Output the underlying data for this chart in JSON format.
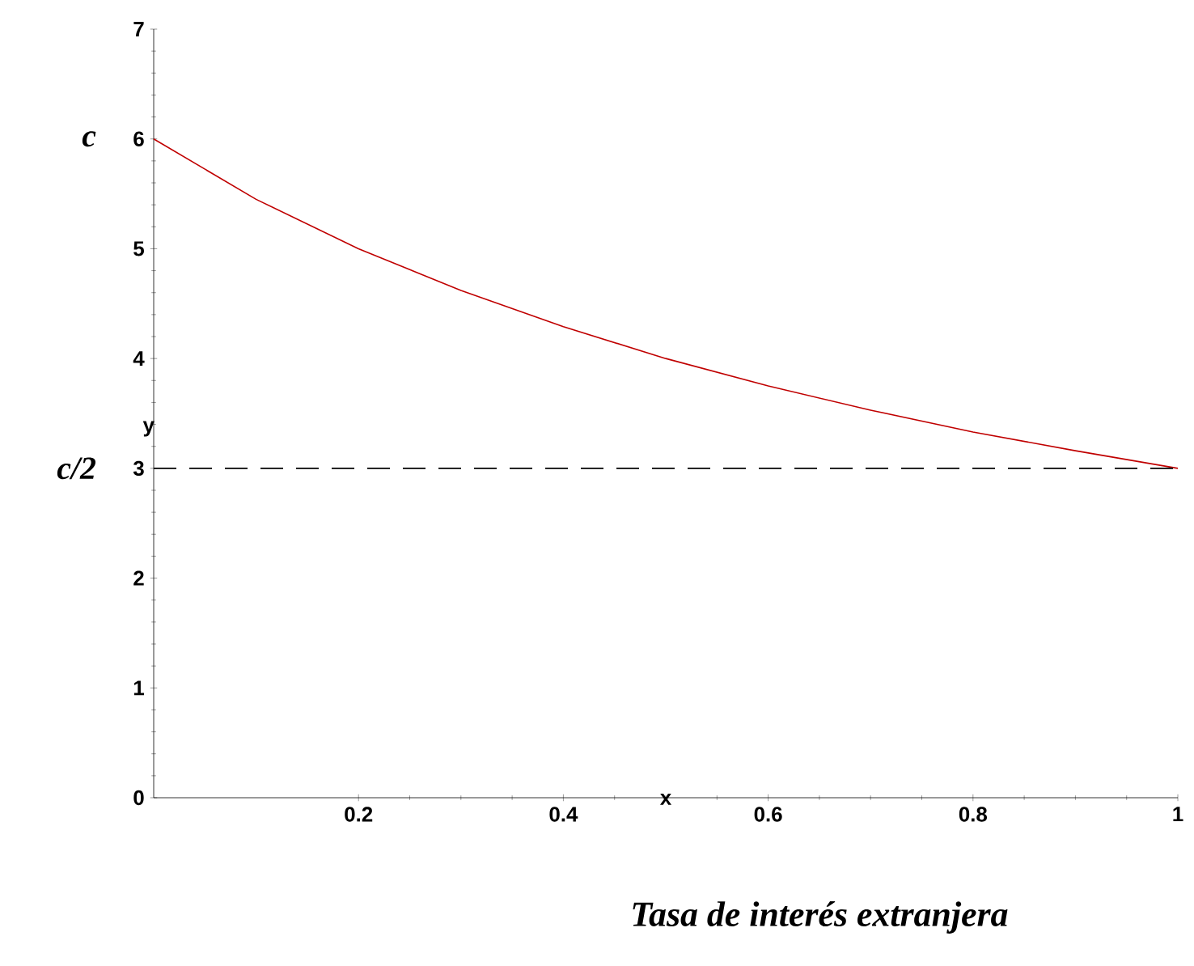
{
  "chart_data": {
    "type": "line",
    "xlabel": "x",
    "ylabel": "y",
    "x": [
      0,
      0.1,
      0.2,
      0.3,
      0.4,
      0.5,
      0.6,
      0.7,
      0.8,
      0.9,
      1
    ],
    "series": [
      {
        "color": "#c00000",
        "values": [
          6,
          5.45,
          5,
          4.62,
          4.29,
          4,
          3.75,
          3.53,
          3.33,
          3.16,
          3
        ]
      }
    ],
    "xlim": [
      0,
      1
    ],
    "ylim": [
      0,
      7
    ],
    "xticks": [
      0.2,
      0.4,
      0.6,
      0.8,
      1
    ],
    "yticks": [
      0,
      1,
      2,
      3,
      4,
      5,
      6,
      7
    ],
    "ref_lines": [
      {
        "axis": "y",
        "value": 3,
        "label": "c/2",
        "color": "#000000",
        "line_style": "dashed"
      }
    ],
    "annotations": [
      {
        "text": "c",
        "x": 0,
        "y": 6
      },
      "Tasa de interés extranjera"
    ],
    "marker": "none",
    "line_style": "solid"
  }
}
